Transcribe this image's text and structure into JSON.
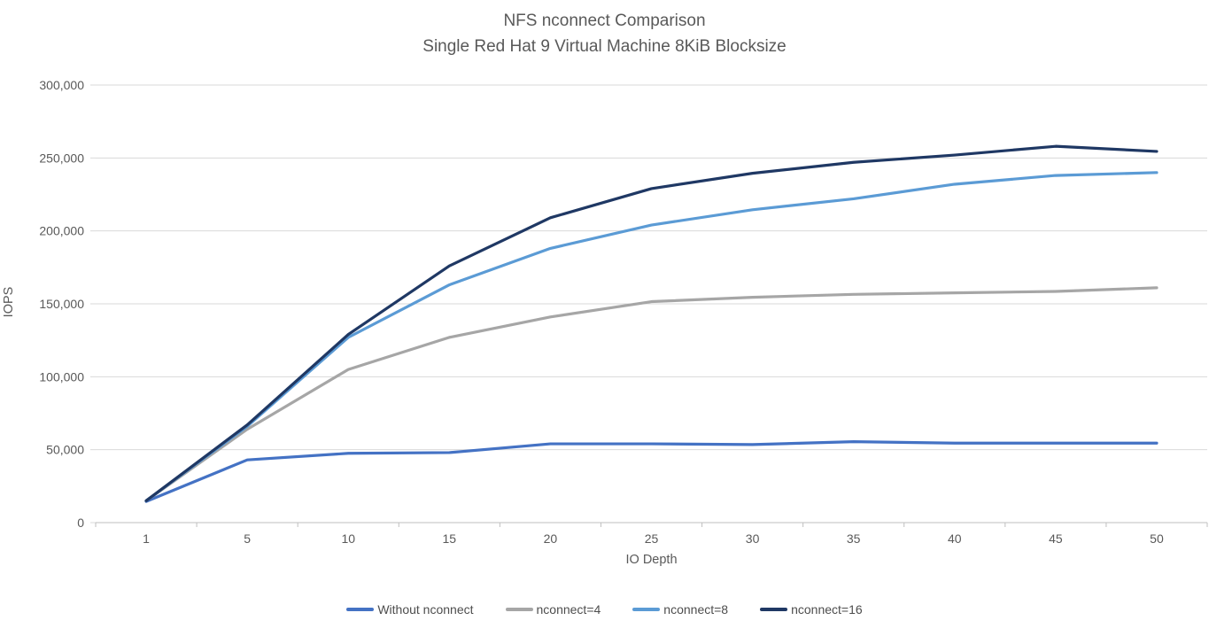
{
  "colors": {
    "background": "#FFFFFF",
    "title_text": "#595959",
    "axis_text": "#595959",
    "legend_text": "#4D4D4D",
    "gridline": "#D9D9D9",
    "axis_line": "#BFBFBF"
  },
  "chart_data": {
    "type": "line",
    "title": "NFS nconnect Comparison",
    "subtitle": "Single Red Hat 9 Virtual Machine 8KiB Blocksize",
    "xlabel": "IO Depth",
    "ylabel": "IOPS",
    "categories": [
      1,
      5,
      10,
      15,
      20,
      25,
      30,
      35,
      40,
      45,
      50
    ],
    "ylim": [
      0,
      300000
    ],
    "ytick_step": 50000,
    "ytick_labels": [
      "0",
      "50,000",
      "100,000",
      "150,000",
      "200,000",
      "250,000",
      "300,000"
    ],
    "grid": true,
    "legend_position": "bottom",
    "series": [
      {
        "name": "Without nconnect",
        "color": "#4472C4",
        "values": [
          14500,
          43000,
          47500,
          48000,
          54000,
          54000,
          53500,
          55500,
          54500,
          54500,
          54500
        ]
      },
      {
        "name": "nconnect=4",
        "color": "#A6A6A6",
        "values": [
          15000,
          64000,
          105000,
          127000,
          141000,
          151500,
          154500,
          156500,
          157500,
          158500,
          161000
        ]
      },
      {
        "name": "nconnect=8",
        "color": "#5B9BD5",
        "values": [
          15000,
          66000,
          127000,
          163000,
          188000,
          204000,
          214500,
          222000,
          232000,
          238000,
          240000
        ]
      },
      {
        "name": "nconnect=16",
        "color": "#1F3864",
        "values": [
          15000,
          67000,
          129000,
          176000,
          209000,
          229000,
          239500,
          247000,
          252000,
          258000,
          254500
        ]
      }
    ]
  }
}
